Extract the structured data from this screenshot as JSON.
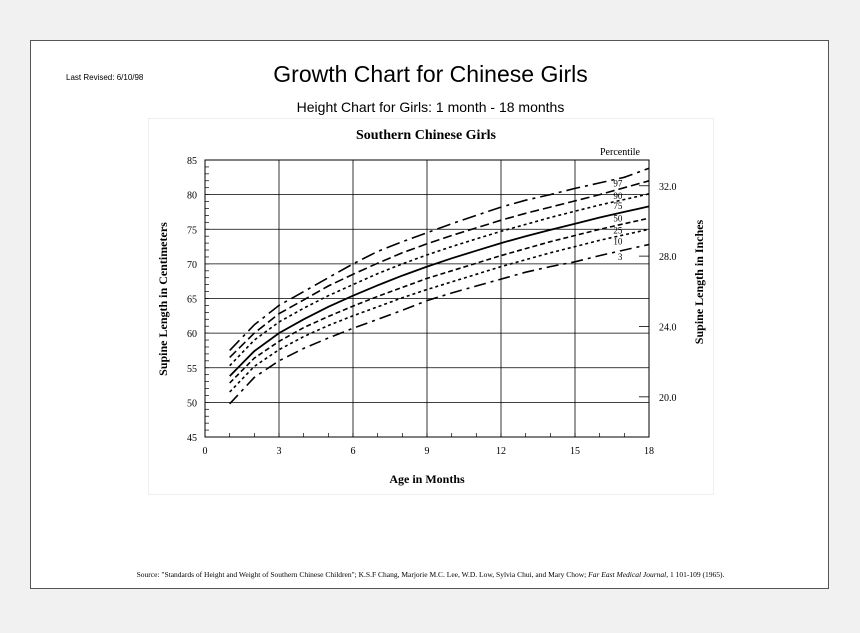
{
  "header": {
    "last_revised": "Last Revised: 6/10/98",
    "title": "Growth Chart for Chinese Girls",
    "subtitle": "Height Chart for Girls: 1 month - 18 months"
  },
  "footer": {
    "source_prefix": "Source: \"Standards of Height and Weight of Southern Chinese Children\"; K.S.F Chang, Marjorie M.C. Lee, W.D. Low, Sylvia Chui, and Mary Chow; ",
    "journal": "Far East Medical Journal",
    "source_suffix": ", 1 101-109 (1965)."
  },
  "chart_data": {
    "type": "line",
    "title": "Southern Chinese Girls",
    "xlabel": "Age in Months",
    "ylabel": "Supine Length in Centimeters",
    "ylabel_right": "Supine Length in Inches",
    "legend_title": "Percentile",
    "xlim": [
      0,
      18
    ],
    "ylim": [
      45,
      85
    ],
    "x_ticks": [
      "0",
      "3",
      "6",
      "9",
      "12",
      "15",
      "18"
    ],
    "y_ticks": [
      "45",
      "50",
      "55",
      "60",
      "65",
      "70",
      "75",
      "80",
      "85"
    ],
    "y_right_ticks": [
      {
        "label": "20.0",
        "inches": 20
      },
      {
        "label": "24.0",
        "inches": 24
      },
      {
        "label": "28.0",
        "inches": 28
      },
      {
        "label": "32.0",
        "inches": 32
      }
    ],
    "grid": true,
    "x": [
      1,
      2,
      3,
      4,
      5,
      6,
      7,
      8,
      9,
      10,
      11,
      12,
      13,
      14,
      15,
      16,
      17,
      18
    ],
    "series": [
      {
        "name": "97",
        "dash": "14 5 3 5",
        "values": [
          57.5,
          61.2,
          64.0,
          66.0,
          68.0,
          70.0,
          71.8,
          73.2,
          74.5,
          75.8,
          77.0,
          78.2,
          79.2,
          80.0,
          80.9,
          81.7,
          82.5,
          83.8
        ]
      },
      {
        "name": "90",
        "dash": "9 4",
        "values": [
          56.5,
          60.0,
          62.8,
          64.8,
          66.8,
          68.5,
          70.1,
          71.6,
          72.9,
          74.1,
          75.2,
          76.3,
          77.3,
          78.2,
          79.1,
          80.0,
          81.0,
          82.0
        ]
      },
      {
        "name": "75",
        "dash": "3 3",
        "values": [
          55.3,
          59.0,
          61.6,
          63.6,
          65.4,
          67.0,
          68.6,
          70.0,
          71.3,
          72.5,
          73.6,
          74.7,
          75.7,
          76.7,
          77.6,
          78.5,
          79.3,
          80.1
        ]
      },
      {
        "name": "50",
        "dash": "",
        "values": [
          53.8,
          57.4,
          60.0,
          62.0,
          63.8,
          65.4,
          66.9,
          68.3,
          69.6,
          70.8,
          71.9,
          73.0,
          74.0,
          74.9,
          75.8,
          76.7,
          77.5,
          78.3
        ]
      },
      {
        "name": "25",
        "dash": "5 3",
        "values": [
          52.8,
          56.4,
          58.8,
          60.8,
          62.4,
          63.9,
          65.3,
          66.6,
          67.9,
          69.0,
          70.1,
          71.2,
          72.2,
          73.2,
          74.1,
          75.0,
          75.8,
          76.6
        ]
      },
      {
        "name": "10",
        "dash": "3 3",
        "values": [
          51.5,
          55.2,
          57.6,
          59.5,
          61.1,
          62.5,
          63.8,
          65.1,
          66.3,
          67.4,
          68.5,
          69.6,
          70.6,
          71.6,
          72.5,
          73.4,
          74.2,
          75.0
        ]
      },
      {
        "name": "3",
        "dash": "12 5 3 5",
        "values": [
          49.8,
          53.6,
          56.0,
          57.8,
          59.3,
          60.7,
          62.0,
          63.3,
          64.7,
          65.8,
          66.8,
          67.8,
          68.8,
          69.6,
          70.3,
          71.2,
          72.0,
          72.8
        ]
      }
    ]
  }
}
